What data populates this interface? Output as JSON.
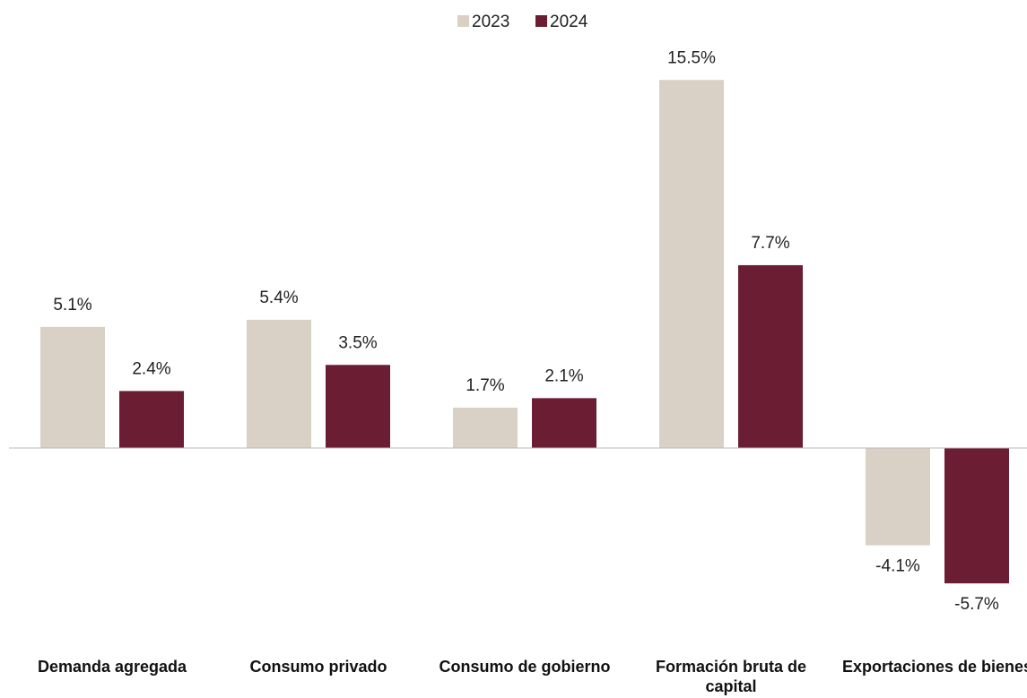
{
  "chart_data": {
    "type": "bar",
    "categories": [
      "Demanda agregada",
      "Consumo privado",
      "Consumo de gobierno",
      "Formación bruta de capital",
      "Exportaciones de bienes"
    ],
    "series": [
      {
        "name": "2023",
        "color": "#d9d1c5",
        "values": [
          5.1,
          5.4,
          1.7,
          15.5,
          -4.1
        ],
        "value_labels": [
          "5.1%",
          "5.4%",
          "1.7%",
          "15.5%",
          "-4.1%"
        ]
      },
      {
        "name": "2024",
        "color": "#6b1d33",
        "values": [
          2.4,
          3.5,
          2.1,
          7.7,
          -5.7
        ],
        "value_labels": [
          "2.4%",
          "3.5%",
          "2.1%",
          "7.7%",
          "-5.7%"
        ]
      }
    ],
    "ylim": [
      -7,
      17
    ],
    "legend": "top"
  }
}
